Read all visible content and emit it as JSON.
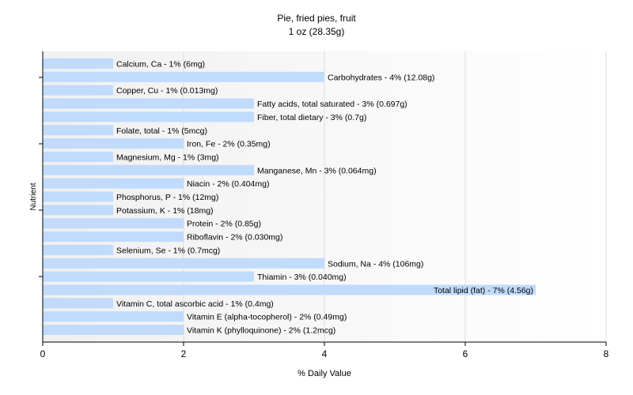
{
  "chart_data": {
    "type": "bar",
    "orientation": "horizontal",
    "title": "Pie, fried pies, fruit",
    "subtitle": "1 oz (28.35g)",
    "xlabel": "% Daily Value",
    "ylabel": "Nutrient",
    "xlim": [
      0,
      8
    ],
    "xticks": [
      "0",
      "2",
      "4",
      "6",
      "8"
    ],
    "grid": true,
    "bar_color": "#c0dbfc",
    "categories": [
      "Calcium, Ca",
      "Carbohydrates",
      "Copper, Cu",
      "Fatty acids, total saturated",
      "Fiber, total dietary",
      "Folate, total",
      "Iron, Fe",
      "Magnesium, Mg",
      "Manganese, Mn",
      "Niacin",
      "Phosphorus, P",
      "Potassium, K",
      "Protein",
      "Riboflavin",
      "Selenium, Se",
      "Sodium, Na",
      "Thiamin",
      "Total lipid (fat)",
      "Vitamin C, total ascorbic acid",
      "Vitamin E (alpha-tocopherol)",
      "Vitamin K (phylloquinone)"
    ],
    "values": [
      1,
      4,
      1,
      3,
      3,
      1,
      2,
      1,
      3,
      2,
      1,
      1,
      2,
      2,
      1,
      4,
      3,
      7,
      1,
      2,
      2
    ],
    "labels": [
      "Calcium, Ca - 1% (6mg)",
      "Carbohydrates - 4% (12.08g)",
      "Copper, Cu - 1% (0.013mg)",
      "Fatty acids, total saturated - 3% (0.697g)",
      "Fiber, total dietary - 3% (0.7g)",
      "Folate, total - 1% (5mcg)",
      "Iron, Fe - 2% (0.35mg)",
      "Magnesium, Mg - 1% (3mg)",
      "Manganese, Mn - 3% (0.064mg)",
      "Niacin - 2% (0.404mg)",
      "Phosphorus, P - 1% (12mg)",
      "Potassium, K - 1% (18mg)",
      "Protein - 2% (0.85g)",
      "Riboflavin - 2% (0.030mg)",
      "Selenium, Se - 1% (0.7mcg)",
      "Sodium, Na - 4% (106mg)",
      "Thiamin - 3% (0.040mg)",
      "Total lipid (fat) - 7% (4.56g)",
      "Vitamin C, total ascorbic acid - 1% (0.4mg)",
      "Vitamin E (alpha-tocopherol) - 2% (0.49mg)",
      "Vitamin K (phylloquinone) - 2% (1.2mcg)"
    ]
  }
}
